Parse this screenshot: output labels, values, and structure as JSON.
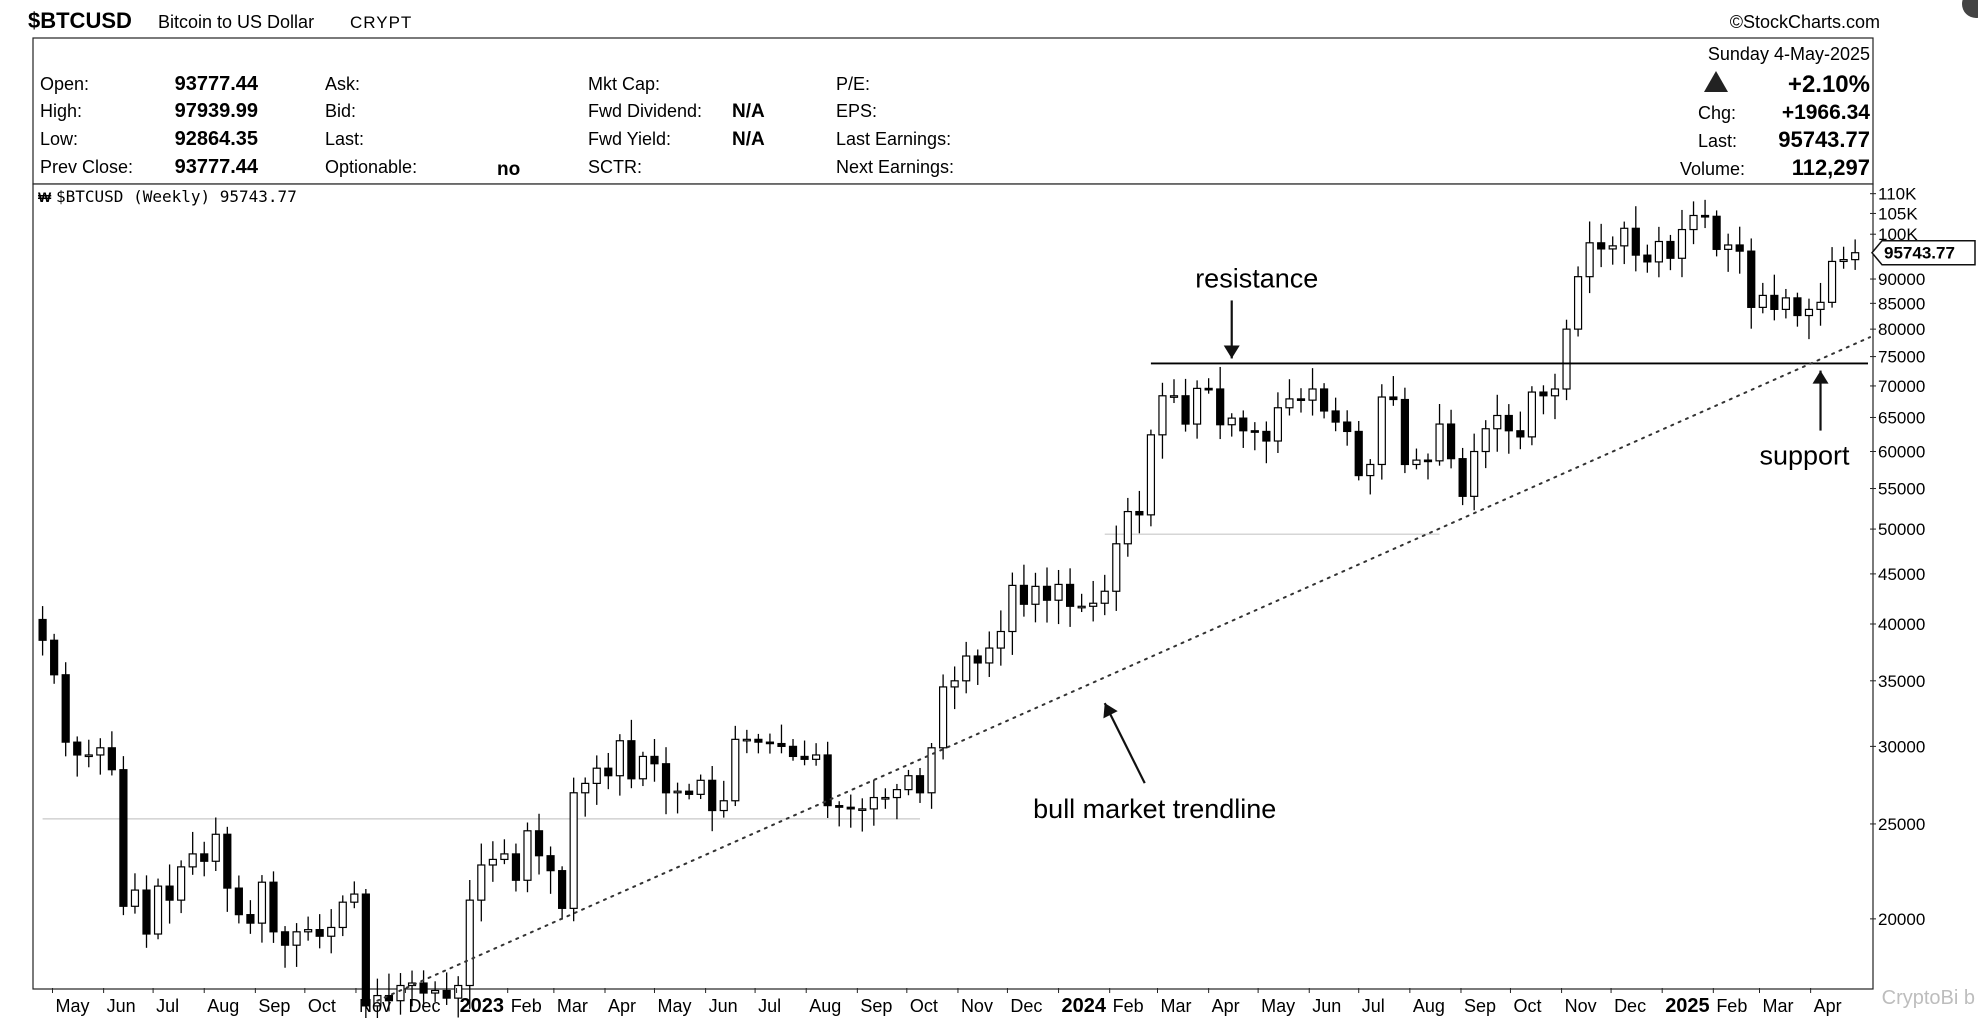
{
  "header": {
    "symbol": "$BTCUSD",
    "name": "Bitcoin to US Dollar",
    "exchange": "CRYPT",
    "source": "©StockCharts.com",
    "date": "Sunday  4-May-2025"
  },
  "quote": {
    "open_label": "Open:",
    "open": "93777.44",
    "high_label": "High:",
    "high": "97939.99",
    "low_label": "Low:",
    "low": "92864.35",
    "prev_close_label": "Prev Close:",
    "prev_close": "93777.44",
    "ask_label": "Ask:",
    "bid_label": "Bid:",
    "last_label": "Last:",
    "optionable_label": "Optionable:",
    "optionable": "no",
    "mkt_cap_label": "Mkt Cap:",
    "fwd_dividend_label": "Fwd Dividend:",
    "fwd_dividend": "N/A",
    "fwd_yield_label": "Fwd Yield:",
    "fwd_yield": "N/A",
    "sctr_label": "SCTR:",
    "pe_label": "P/E:",
    "eps_label": "EPS:",
    "last_earnings_label": "Last Earnings:",
    "next_earnings_label": "Next Earnings:",
    "change_pct": "+2.10%",
    "chg_label": "Chg:",
    "chg": "+1966.34",
    "last2_label": "Last:",
    "last": "95743.77",
    "volume_label": "Volume:",
    "volume": "112,297"
  },
  "chart_label": "$BTCUSD (Weekly) 95743.77",
  "price_tag": "95743.77",
  "watermark": "CryptoBi b",
  "colors": {
    "up": "#ffffff",
    "down": "#000000",
    "line": "#000000",
    "grid": "#c8c8c8"
  },
  "chart_data": {
    "type": "candlestick",
    "scale": "log",
    "y_range": [
      17000,
      112000
    ],
    "y_ticks": [
      110000,
      105000,
      100000,
      90000,
      85000,
      80000,
      75000,
      70000,
      65000,
      60000,
      55000,
      50000,
      45000,
      40000,
      35000,
      30000,
      25000,
      20000
    ],
    "y_tick_labels": [
      "110K",
      "105K",
      "100K",
      "90000",
      "85000",
      "80000",
      "75000",
      "70000",
      "65000",
      "60000",
      "55000",
      "50000",
      "45000",
      "40000",
      "35000",
      "30000",
      "25000",
      "20000"
    ],
    "x_labels": [
      {
        "label": "May",
        "date": "2022-05-01"
      },
      {
        "label": "Jun",
        "date": "2022-06-01"
      },
      {
        "label": "Jul",
        "date": "2022-07-01"
      },
      {
        "label": "Aug",
        "date": "2022-08-01"
      },
      {
        "label": "Sep",
        "date": "2022-09-01"
      },
      {
        "label": "Oct",
        "date": "2022-10-01"
      },
      {
        "label": "Nov",
        "date": "2022-11-01"
      },
      {
        "label": "Dec",
        "date": "2022-12-01"
      },
      {
        "label": "2023",
        "date": "2023-01-01",
        "bold": true
      },
      {
        "label": "Feb",
        "date": "2023-02-01"
      },
      {
        "label": "Mar",
        "date": "2023-03-01"
      },
      {
        "label": "Apr",
        "date": "2023-04-01"
      },
      {
        "label": "May",
        "date": "2023-05-01"
      },
      {
        "label": "Jun",
        "date": "2023-06-01"
      },
      {
        "label": "Jul",
        "date": "2023-07-01"
      },
      {
        "label": "Aug",
        "date": "2023-08-01"
      },
      {
        "label": "Sep",
        "date": "2023-09-01"
      },
      {
        "label": "Oct",
        "date": "2023-10-01"
      },
      {
        "label": "Nov",
        "date": "2023-11-01"
      },
      {
        "label": "Dec",
        "date": "2023-12-01"
      },
      {
        "label": "2024",
        "date": "2024-01-01",
        "bold": true
      },
      {
        "label": "Feb",
        "date": "2024-02-01"
      },
      {
        "label": "Mar",
        "date": "2024-03-01"
      },
      {
        "label": "Apr",
        "date": "2024-04-01"
      },
      {
        "label": "May",
        "date": "2024-05-01"
      },
      {
        "label": "Jun",
        "date": "2024-06-01"
      },
      {
        "label": "Jul",
        "date": "2024-07-01"
      },
      {
        "label": "Aug",
        "date": "2024-08-01"
      },
      {
        "label": "Sep",
        "date": "2024-09-01"
      },
      {
        "label": "Oct",
        "date": "2024-10-01"
      },
      {
        "label": "Nov",
        "date": "2024-11-01"
      },
      {
        "label": "Dec",
        "date": "2024-12-01"
      },
      {
        "label": "2025",
        "date": "2025-01-01",
        "bold": true
      },
      {
        "label": "Feb",
        "date": "2025-02-01"
      },
      {
        "label": "Mar",
        "date": "2025-03-01"
      },
      {
        "label": "Apr",
        "date": "2025-04-01"
      }
    ],
    "candle_dates": [
      "2022-04-25",
      "2022-05-02",
      "2022-05-09",
      "2022-05-16",
      "2022-05-23",
      "2022-05-30",
      "2022-06-06",
      "2022-06-13",
      "2022-06-20",
      "2022-06-27",
      "2022-07-04",
      "2022-07-11",
      "2022-07-18",
      "2022-07-25",
      "2022-08-01",
      "2022-08-08",
      "2022-08-15",
      "2022-08-22",
      "2022-08-29",
      "2022-09-05",
      "2022-09-12",
      "2022-09-19",
      "2022-09-26",
      "2022-10-03",
      "2022-10-10",
      "2022-10-17",
      "2022-10-24",
      "2022-10-31",
      "2022-11-07",
      "2022-11-14",
      "2022-11-21",
      "2022-11-28",
      "2022-12-05",
      "2022-12-12",
      "2022-12-19",
      "2022-12-26",
      "2023-01-02",
      "2023-01-09",
      "2023-01-16",
      "2023-01-23",
      "2023-01-30",
      "2023-02-06",
      "2023-02-13",
      "2023-02-20",
      "2023-02-27",
      "2023-03-06",
      "2023-03-13",
      "2023-03-20",
      "2023-03-27",
      "2023-04-03",
      "2023-04-10",
      "2023-04-17",
      "2023-04-24",
      "2023-05-01",
      "2023-05-08",
      "2023-05-15",
      "2023-05-22",
      "2023-05-29",
      "2023-06-05",
      "2023-06-12",
      "2023-06-19",
      "2023-06-26",
      "2023-07-03",
      "2023-07-10",
      "2023-07-17",
      "2023-07-24",
      "2023-07-31",
      "2023-08-07",
      "2023-08-14",
      "2023-08-21",
      "2023-08-28",
      "2023-09-04",
      "2023-09-11",
      "2023-09-18",
      "2023-09-25",
      "2023-10-02",
      "2023-10-09",
      "2023-10-16",
      "2023-10-23",
      "2023-10-30",
      "2023-11-06",
      "2023-11-13",
      "2023-11-20",
      "2023-11-27",
      "2023-12-04",
      "2023-12-11",
      "2023-12-18",
      "2023-12-25",
      "2024-01-01",
      "2024-01-08",
      "2024-01-15",
      "2024-01-22",
      "2024-01-29",
      "2024-02-05",
      "2024-02-12",
      "2024-02-19",
      "2024-02-26",
      "2024-03-04",
      "2024-03-11",
      "2024-03-18",
      "2024-03-25",
      "2024-04-01",
      "2024-04-08",
      "2024-04-15",
      "2024-04-22",
      "2024-04-29",
      "2024-05-06",
      "2024-05-13",
      "2024-05-20",
      "2024-05-27",
      "2024-06-03",
      "2024-06-10",
      "2024-06-17",
      "2024-06-24",
      "2024-07-01",
      "2024-07-08",
      "2024-07-15",
      "2024-07-22",
      "2024-07-29",
      "2024-08-05",
      "2024-08-12",
      "2024-08-19",
      "2024-08-26",
      "2024-09-02",
      "2024-09-09",
      "2024-09-16",
      "2024-09-23",
      "2024-09-30",
      "2024-10-07",
      "2024-10-14",
      "2024-10-21",
      "2024-10-28",
      "2024-11-04",
      "2024-11-11",
      "2024-11-18",
      "2024-11-25",
      "2024-12-02",
      "2024-12-09",
      "2024-12-16",
      "2024-12-23",
      "2024-12-30",
      "2025-01-06",
      "2025-01-13",
      "2025-01-20",
      "2025-01-27",
      "2025-02-03",
      "2025-02-10",
      "2025-02-17",
      "2025-02-24",
      "2025-03-03",
      "2025-03-10",
      "2025-03-17",
      "2025-03-24",
      "2025-03-31",
      "2025-04-07",
      "2025-04-14",
      "2025-04-21",
      "2025-04-28"
    ],
    "closes": [
      38500,
      35500,
      30300,
      29400,
      29400,
      29900,
      28400,
      20600,
      21400,
      19300,
      21600,
      20900,
      22600,
      23300,
      22900,
      24400,
      21500,
      20200,
      19800,
      21800,
      19400,
      18800,
      19400,
      19500,
      19200,
      19600,
      20800,
      21200,
      16300,
      16700,
      16500,
      17100,
      17200,
      16800,
      16900,
      16600,
      17100,
      20900,
      22700,
      23000,
      23300,
      21900,
      24600,
      23200,
      22400,
      20500,
      26900,
      27500,
      28500,
      28000,
      30400,
      27800,
      29300,
      28800,
      26900,
      27000,
      26800,
      27700,
      25800,
      26400,
      30500,
      30500,
      30300,
      30200,
      30000,
      29300,
      29100,
      29400,
      26100,
      26000,
      25900,
      25900,
      26600,
      26600,
      27100,
      28000,
      26900,
      29900,
      34500,
      35000,
      37100,
      36500,
      37800,
      39300,
      43800,
      41900,
      43700,
      42300,
      43900,
      41700,
      41700,
      42000,
      43200,
      48300,
      52100,
      51700,
      62400,
      68400,
      68400,
      64000,
      69600,
      69500,
      63900,
      64900,
      63000,
      62900,
      61500,
      66500,
      67900,
      67700,
      69500,
      66000,
      64300,
      62900,
      56700,
      58200,
      68200,
      67800,
      58200,
      58800,
      58700,
      64000,
      59000,
      54000,
      60000,
      63300,
      65300,
      63000,
      62100,
      69000,
      68400,
      69500,
      80000,
      90500,
      98000,
      96600,
      97300,
      101400,
      95200,
      93700,
      98300,
      94500,
      101100,
      104500,
      104300,
      96500,
      97500,
      96100,
      84200,
      86600,
      83800,
      86100,
      82600,
      83800,
      85200,
      93800,
      94200,
      95743.77
    ],
    "resistance_level": 73800,
    "ref_lines": [
      {
        "level": 25300,
        "from": "2022-04-25",
        "to": "2023-10-09"
      },
      {
        "level": 49400,
        "from": "2024-01-29",
        "to": "2024-08-19"
      }
    ],
    "trendline": {
      "points": [
        [
          "2022-11-14",
          16500
        ],
        [
          "2025-05-04",
          78500
        ]
      ],
      "style": "dotted"
    },
    "annotations": [
      {
        "text": "resistance",
        "arrow": "down",
        "date": "2024-04-15",
        "level": 73800
      },
      {
        "text": "support",
        "arrow": "up",
        "date": "2025-04-07",
        "level": 75000
      },
      {
        "text": "bull market trendline",
        "arrow": "up-left",
        "date": "2024-01-29",
        "level": 34000
      }
    ]
  }
}
